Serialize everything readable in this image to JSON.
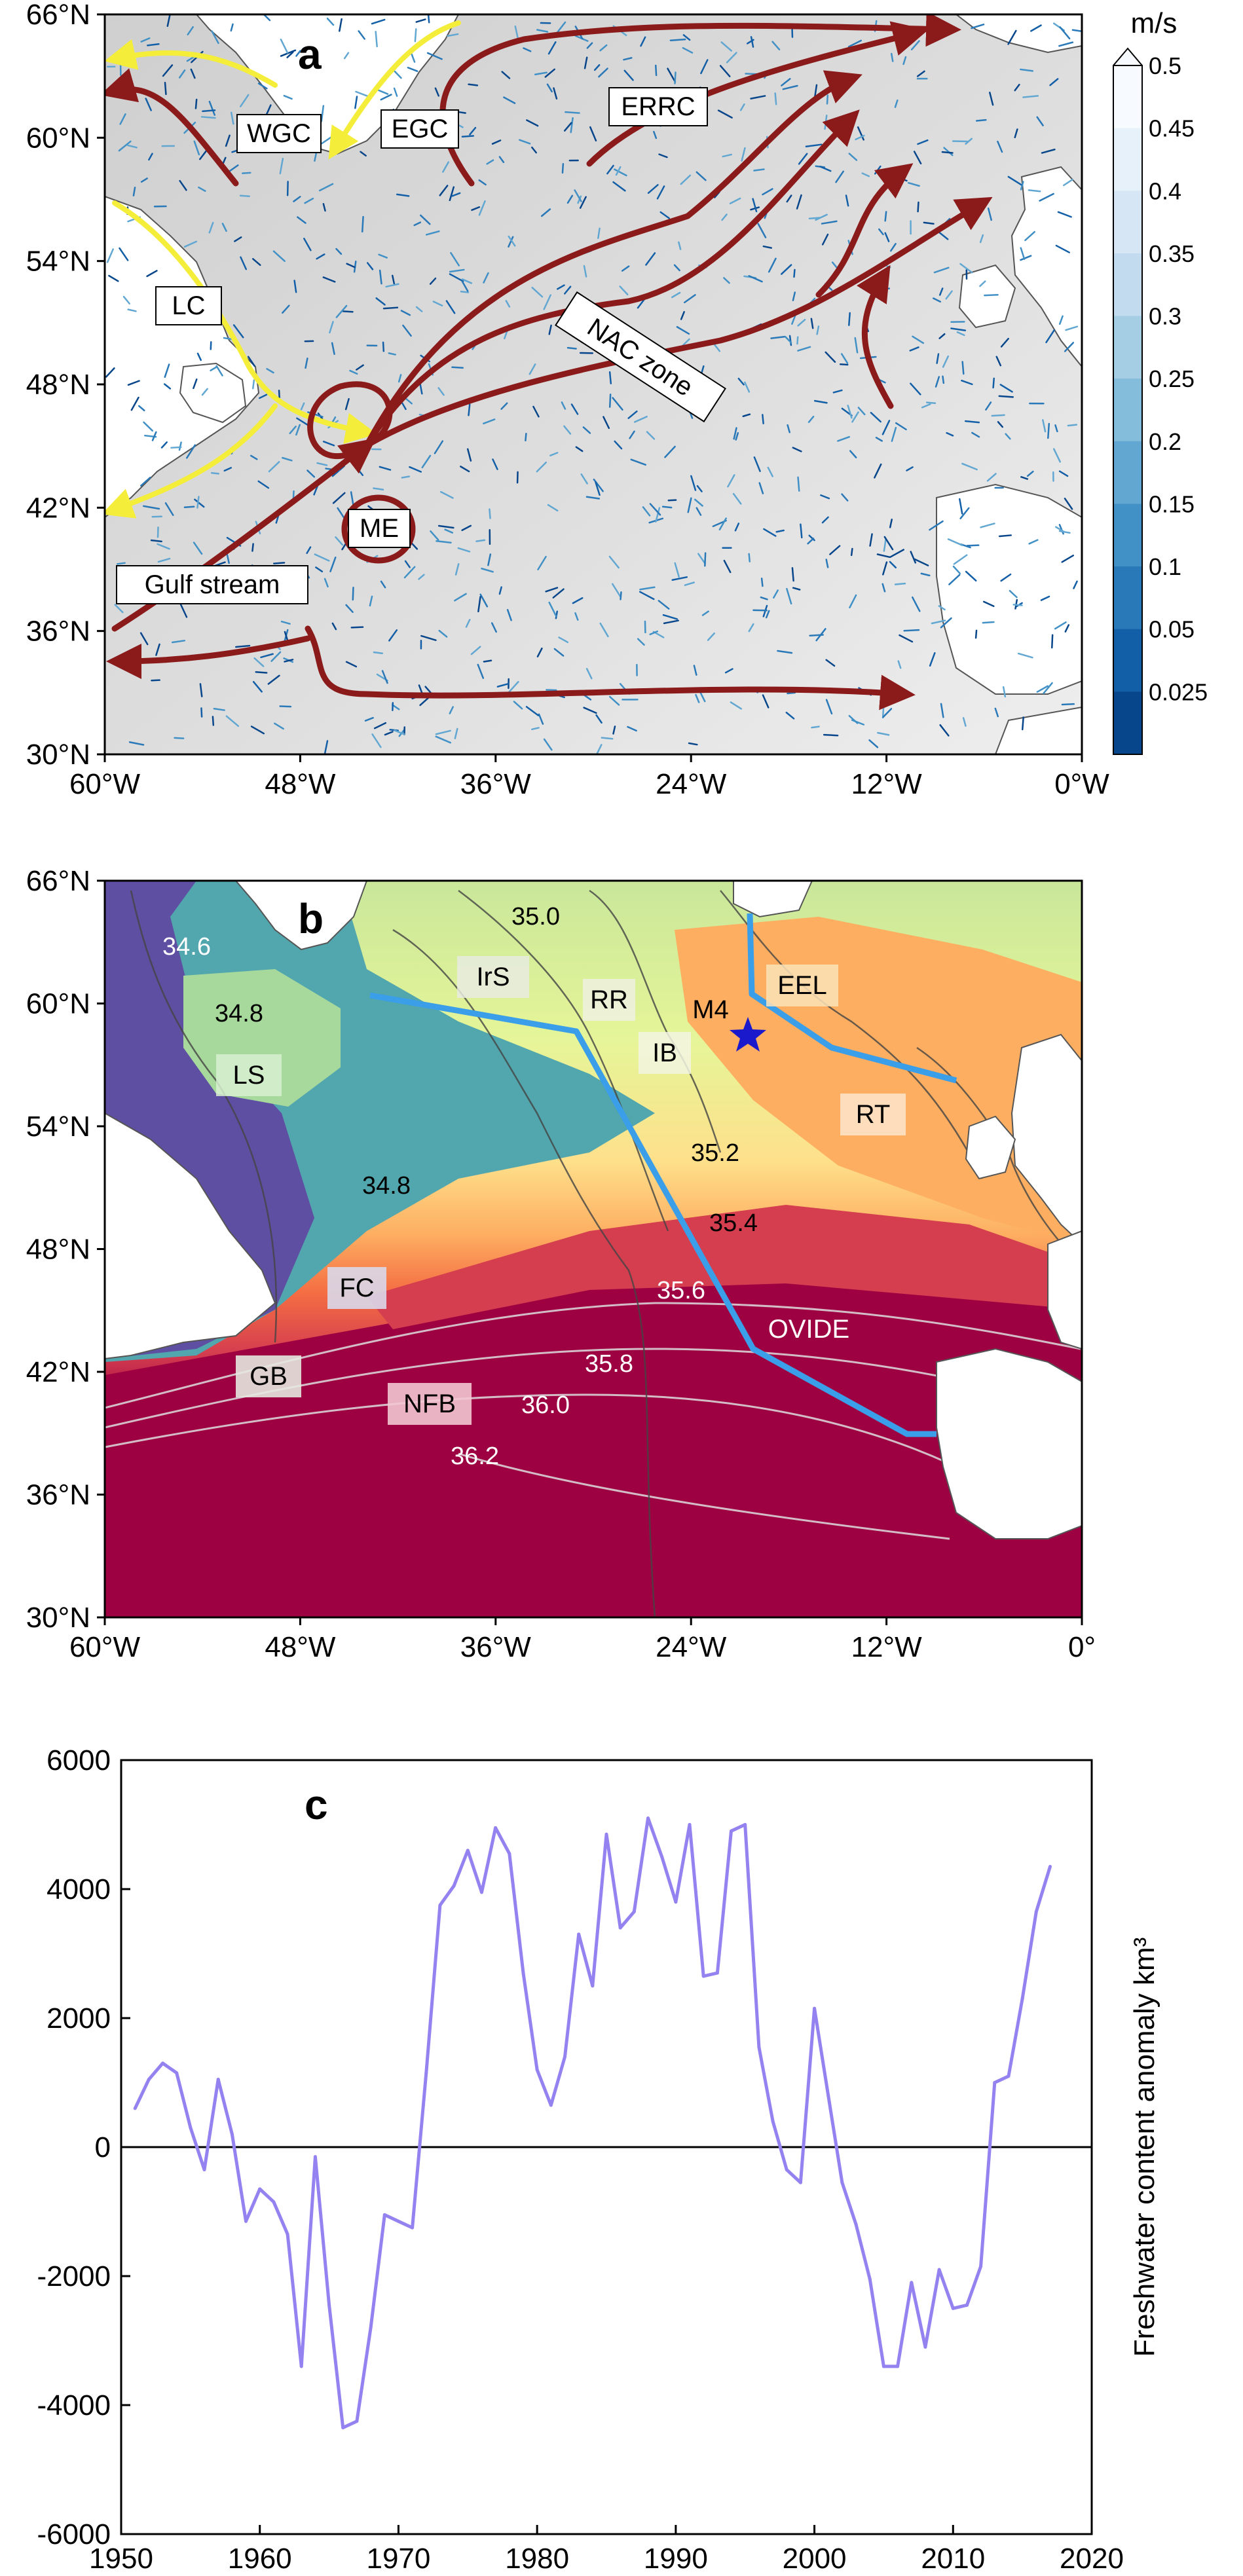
{
  "panel_a": {
    "letter": "a",
    "colorbar_unit": "m/s",
    "colorbar_ticks": [
      "0.5",
      "0.45",
      "0.4",
      "0.35",
      "0.3",
      "0.25",
      "0.2",
      "0.15",
      "0.1",
      "0.05",
      "0.025"
    ],
    "colorbar_colors": [
      "#f7fbff",
      "#e7f1fa",
      "#d6e6f4",
      "#c2dbee",
      "#a5cde3",
      "#84bcdb",
      "#61a7d2",
      "#4191c6",
      "#2978b8",
      "#135fa7",
      "#08468b"
    ],
    "current_labels": [
      "WGC",
      "EGC",
      "ERRC",
      "LC",
      "NAC zone",
      "ME",
      "Gulf stream"
    ]
  },
  "panel_b": {
    "letter": "b",
    "region_labels": [
      "IrS",
      "RR",
      "M4",
      "EEL",
      "LS",
      "IB",
      "RT",
      "FC",
      "OVIDE",
      "GB",
      "NFB"
    ],
    "isohaline_labels": [
      "34.6",
      "34.8",
      "35.0",
      "34.8",
      "35.2",
      "35.4",
      "35.6",
      "35.8",
      "36.0",
      "36.2"
    ]
  },
  "map_axes": {
    "lat_labels": [
      "66°N",
      "60°N",
      "54°N",
      "48°N",
      "42°N",
      "36°N",
      "30°N"
    ],
    "lon_labels_a": [
      "60°W",
      "48°W",
      "36°W",
      "24°W",
      "12°W",
      "0°W"
    ],
    "lon_labels_b": [
      "60°W",
      "48°W",
      "36°W",
      "24°W",
      "12°W",
      "0°"
    ]
  },
  "chart_data": {
    "type": "line",
    "panel_letter": "c",
    "ylabel": "Freshwater content anomaly km³",
    "xlim": [
      1950,
      2020
    ],
    "ylim": [
      -6000,
      6000
    ],
    "x_ticks": [
      "1950",
      "1960",
      "1970",
      "1980",
      "1990",
      "2000",
      "2010",
      "2020"
    ],
    "y_ticks": [
      "6000",
      "4000",
      "2000",
      "0",
      "-2000",
      "-4000",
      "-6000"
    ],
    "line_color": "#9482f0",
    "zero_line": true,
    "x": [
      1951,
      1952,
      1953,
      1954,
      1955,
      1956,
      1957,
      1958,
      1959,
      1960,
      1961,
      1962,
      1963,
      1964,
      1965,
      1966,
      1967,
      1968,
      1969,
      1970,
      1971,
      1972,
      1973,
      1974,
      1975,
      1976,
      1977,
      1978,
      1979,
      1980,
      1981,
      1982,
      1983,
      1984,
      1985,
      1986,
      1987,
      1988,
      1989,
      1990,
      1991,
      1992,
      1993,
      1994,
      1995,
      1996,
      1997,
      1998,
      1999,
      2000,
      2001,
      2002,
      2003,
      2004,
      2005,
      2006,
      2007,
      2008,
      2009,
      2010,
      2011,
      2012,
      2013,
      2014,
      2015,
      2016,
      2017
    ],
    "y": [
      600,
      1050,
      1300,
      1150,
      300,
      -350,
      1050,
      200,
      -1150,
      -650,
      -850,
      -1350,
      -3400,
      -150,
      -2450,
      -4350,
      -4250,
      -2800,
      -1050,
      -1150,
      -1250,
      1150,
      3750,
      4050,
      4600,
      3950,
      4950,
      4550,
      2700,
      1200,
      650,
      1400,
      3300,
      2500,
      4850,
      3400,
      3650,
      5100,
      4500,
      3800,
      5000,
      2650,
      2700,
      4900,
      5000,
      1550,
      400,
      -350,
      -550,
      2150,
      800,
      -550,
      -1200,
      -2050,
      -3400,
      -3400,
      -2100,
      -3100,
      -1900,
      -2500,
      -2450,
      -1850,
      1000,
      1100,
      2300,
      3650,
      4350
    ]
  }
}
